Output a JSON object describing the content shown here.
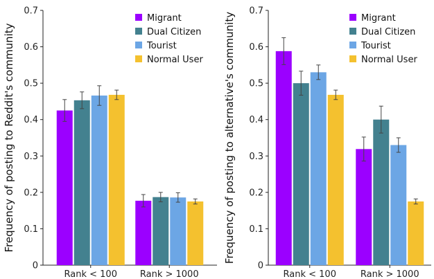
{
  "chart_data": [
    {
      "type": "bar",
      "ylabel": "Frequency of posting to Reddit's community",
      "xlabel": "",
      "ylim": [
        0,
        0.7
      ],
      "yticks": [
        "0",
        "0.1",
        "0.2",
        "0.3",
        "0.4",
        "0.5",
        "0.6",
        "0.7"
      ],
      "categories": [
        "Rank < 100",
        "Rank > 1000"
      ],
      "series": [
        {
          "name": "Migrant",
          "color": "#9b00ff",
          "values": [
            0.425,
            0.177
          ],
          "errors": [
            0.03,
            0.017
          ]
        },
        {
          "name": "Dual Citizen",
          "color": "#43818f",
          "values": [
            0.453,
            0.187
          ],
          "errors": [
            0.023,
            0.013
          ]
        },
        {
          "name": "Tourist",
          "color": "#6ca6e5",
          "values": [
            0.466,
            0.186
          ],
          "errors": [
            0.027,
            0.013
          ]
        },
        {
          "name": "Normal User",
          "color": "#f4c12f",
          "values": [
            0.468,
            0.175
          ],
          "errors": [
            0.013,
            0.007
          ]
        }
      ],
      "legend_position": "top-right",
      "grid": false
    },
    {
      "type": "bar",
      "ylabel": "Frequency of posting to alternative's community",
      "xlabel": "",
      "ylim": [
        0,
        0.7
      ],
      "yticks": [
        "0",
        "0.1",
        "0.2",
        "0.3",
        "0.4",
        "0.5",
        "0.6",
        "0.7"
      ],
      "categories": [
        "Rank < 100",
        "Rank > 1000"
      ],
      "series": [
        {
          "name": "Migrant",
          "color": "#9b00ff",
          "values": [
            0.588,
            0.319
          ],
          "errors": [
            0.037,
            0.033
          ]
        },
        {
          "name": "Dual Citizen",
          "color": "#43818f",
          "values": [
            0.5,
            0.4
          ],
          "errors": [
            0.033,
            0.037
          ]
        },
        {
          "name": "Tourist",
          "color": "#6ca6e5",
          "values": [
            0.53,
            0.33
          ],
          "errors": [
            0.02,
            0.02
          ]
        },
        {
          "name": "Normal User",
          "color": "#f4c12f",
          "values": [
            0.468,
            0.175
          ],
          "errors": [
            0.013,
            0.007
          ]
        }
      ],
      "legend_position": "top-right",
      "grid": false
    }
  ]
}
